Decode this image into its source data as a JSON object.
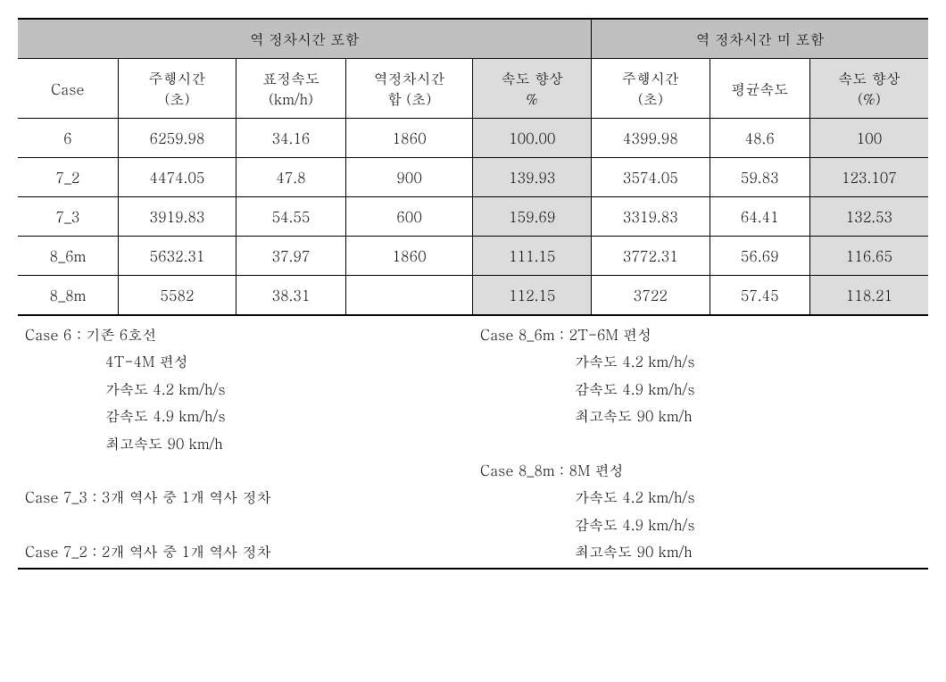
{
  "table": {
    "group_headers": [
      "역 정차시간 포함",
      "역 정차시간 미 포함"
    ],
    "columns": [
      "Case",
      "주행시간\n(초)",
      "표정속도\n(km/h)",
      "역정차시간\n합 (초)",
      "속도 향상\n%",
      "주행시간\n(초)",
      "평균속도",
      "속도 향상\n(%)"
    ],
    "shaded_cols": [
      4,
      7
    ],
    "rows": [
      [
        "6",
        "6259.98",
        "34.16",
        "1860",
        "100.00",
        "4399.98",
        "48.6",
        "100"
      ],
      [
        "7_2",
        "4474.05",
        "47.8",
        "900",
        "139.93",
        "3574.05",
        "59.83",
        "123.107"
      ],
      [
        "7_3",
        "3919.83",
        "54.55",
        "600",
        "159.69",
        "3319.83",
        "64.41",
        "132.53"
      ],
      [
        "8_6m",
        "5632.31",
        "37.97",
        "1860",
        "111.15",
        "3772.31",
        "56.69",
        "116.65"
      ],
      [
        "8_8m",
        "5582",
        "38.31",
        "",
        "112.15",
        "3722",
        "57.45",
        "118.21"
      ]
    ],
    "col_widths": [
      "11%",
      "13%",
      "12%",
      "14%",
      "13%",
      "13%",
      "11%",
      "13%"
    ],
    "group_spans": [
      5,
      3
    ],
    "header_bg": "#c0c0c0",
    "shaded_bg": "#dcdcdc",
    "border_color": "#000000"
  },
  "notes": {
    "left": [
      {
        "indent": 0,
        "text": "Case 6 : 기존 6호선"
      },
      {
        "indent": 1,
        "text": "4T-4M 편성"
      },
      {
        "indent": 1,
        "text": "가속도 4.2 km/h/s"
      },
      {
        "indent": 1,
        "text": "감속도 4.9 km/h/s"
      },
      {
        "indent": 1,
        "text": "최고속도 90 km/h"
      },
      {
        "indent": 0,
        "text": ""
      },
      {
        "indent": 0,
        "text": "Case 7_3 : 3개 역사 중 1개 역사 정차"
      },
      {
        "indent": 0,
        "text": ""
      },
      {
        "indent": 0,
        "text": "Case 7_2 : 2개 역사 중 1개 역사 정차"
      }
    ],
    "right": [
      {
        "indent": 0,
        "text": "Case 8_6m : 2T-6M 편성"
      },
      {
        "indent": 1,
        "text": "   가속도 4.2 km/h/s"
      },
      {
        "indent": 1,
        "text": "   감속도 4.9 km/h/s"
      },
      {
        "indent": 1,
        "text": "   최고속도 90 km/h"
      },
      {
        "indent": 0,
        "text": ""
      },
      {
        "indent": 0,
        "text": "Case 8_8m : 8M 편성"
      },
      {
        "indent": 1,
        "text": "   가속도 4.2 km/h/s"
      },
      {
        "indent": 1,
        "text": "   감속도 4.9 km/h/s"
      },
      {
        "indent": 1,
        "text": "   최고속도 90 km/h"
      }
    ]
  }
}
